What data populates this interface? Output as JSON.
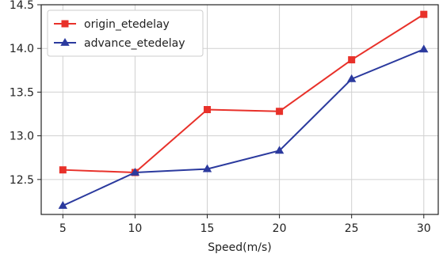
{
  "chart_data": {
    "type": "line",
    "title": "",
    "xlabel": "Speed(m/s)",
    "ylabel": "",
    "x": [
      5,
      10,
      15,
      20,
      25,
      30
    ],
    "xticks": [
      "5",
      "10",
      "15",
      "20",
      "25",
      "30"
    ],
    "yticks": [
      "12.5",
      "13.0",
      "13.5",
      "14.0",
      "14.5"
    ],
    "xlim": [
      3.5,
      31
    ],
    "ylim": [
      12.1,
      14.5
    ],
    "grid": true,
    "legend_position": "top-left",
    "series": [
      {
        "name": "origin_etedelay",
        "color": "#e8312a",
        "marker": "square",
        "values": [
          12.61,
          12.58,
          13.3,
          13.28,
          13.87,
          14.39
        ]
      },
      {
        "name": "advance_etedelay",
        "color": "#2b3a9e",
        "marker": "triangle",
        "values": [
          12.2,
          12.58,
          12.62,
          12.83,
          13.65,
          13.99
        ]
      }
    ]
  }
}
